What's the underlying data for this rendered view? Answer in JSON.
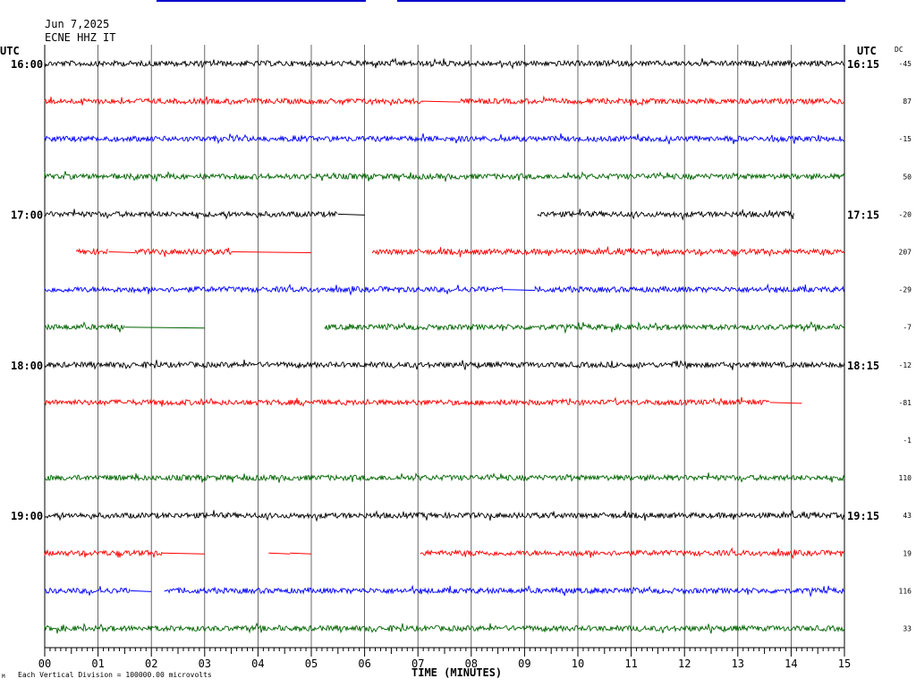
{
  "header": {
    "date": "Jun 7,2025",
    "station": "ECNE HHZ IT",
    "utc_left": "UTC",
    "utc_right": "UTC",
    "dc_label": "DC"
  },
  "footer": {
    "scale_note": "Each Vertical Division = 100000.00 microvolts",
    "corner_mark": "M"
  },
  "chart_data": {
    "type": "line",
    "title": "",
    "xlabel": "TIME (MINUTES)",
    "xlim": [
      0,
      15
    ],
    "x_ticks": [
      "00",
      "01",
      "02",
      "03",
      "04",
      "05",
      "06",
      "07",
      "08",
      "09",
      "10",
      "11",
      "12",
      "13",
      "14",
      "15"
    ],
    "grid": true,
    "trace_colors": [
      "#000000",
      "#ff0000",
      "#0000ff",
      "#006400"
    ],
    "rows": [
      {
        "left": "16:00",
        "right": "16:15",
        "dc": "-45",
        "segments": [
          [
            0,
            15
          ]
        ]
      },
      {
        "left": "",
        "right": "",
        "dc": "87",
        "segments": [
          [
            0,
            7.1
          ],
          [
            7.8,
            15
          ]
        ],
        "flats": [
          [
            7.1,
            7.8
          ]
        ]
      },
      {
        "left": "",
        "right": "",
        "dc": "-15",
        "segments": [
          [
            0,
            15
          ]
        ]
      },
      {
        "left": "",
        "right": "",
        "dc": "50",
        "segments": [
          [
            0,
            15
          ]
        ]
      },
      {
        "left": "17:00",
        "right": "17:15",
        "dc": "-20",
        "segments": [
          [
            0,
            5.5
          ],
          [
            9.25,
            14.05
          ]
        ],
        "flats": [
          [
            5.5,
            6.0
          ]
        ]
      },
      {
        "left": "",
        "right": "",
        "dc": "207",
        "segments": [
          [
            0.6,
            1.2
          ],
          [
            1.7,
            3.5
          ],
          [
            6.15,
            15
          ]
        ],
        "flats": [
          [
            1.2,
            1.7
          ],
          [
            3.5,
            5.0
          ]
        ]
      },
      {
        "left": "",
        "right": "",
        "dc": "-29",
        "segments": [
          [
            0,
            8.6
          ],
          [
            9.2,
            15
          ]
        ],
        "flats": [
          [
            8.6,
            9.2
          ]
        ]
      },
      {
        "left": "",
        "right": "",
        "dc": "-7",
        "segments": [
          [
            0,
            1.5
          ],
          [
            5.25,
            15
          ]
        ],
        "flats": [
          [
            1.5,
            3.0
          ]
        ]
      },
      {
        "left": "18:00",
        "right": "18:15",
        "dc": "-12",
        "segments": [
          [
            0,
            15
          ]
        ]
      },
      {
        "left": "",
        "right": "",
        "dc": "-81",
        "segments": [
          [
            0,
            13.6
          ]
        ],
        "flats": [
          [
            13.6,
            14.2
          ]
        ]
      },
      {
        "left": "",
        "right": "",
        "dc": "-1",
        "segments": []
      },
      {
        "left": "",
        "right": "",
        "dc": "110",
        "segments": [
          [
            0,
            15
          ]
        ]
      },
      {
        "left": "19:00",
        "right": "19:15",
        "dc": "43",
        "segments": [
          [
            0,
            15
          ]
        ]
      },
      {
        "left": "",
        "right": "",
        "dc": "19",
        "segments": [
          [
            0,
            2.2
          ],
          [
            7.05,
            15
          ]
        ],
        "flats": [
          [
            2.2,
            3.0
          ],
          [
            4.2,
            4.6
          ],
          [
            4.6,
            5.0
          ]
        ]
      },
      {
        "left": "",
        "right": "",
        "dc": "116",
        "segments": [
          [
            0,
            1.6
          ],
          [
            2.25,
            15
          ]
        ],
        "flats": [
          [
            1.6,
            2.0
          ]
        ]
      },
      {
        "left": "",
        "right": "",
        "dc": "33",
        "segments": [
          [
            0,
            15
          ]
        ]
      }
    ]
  }
}
